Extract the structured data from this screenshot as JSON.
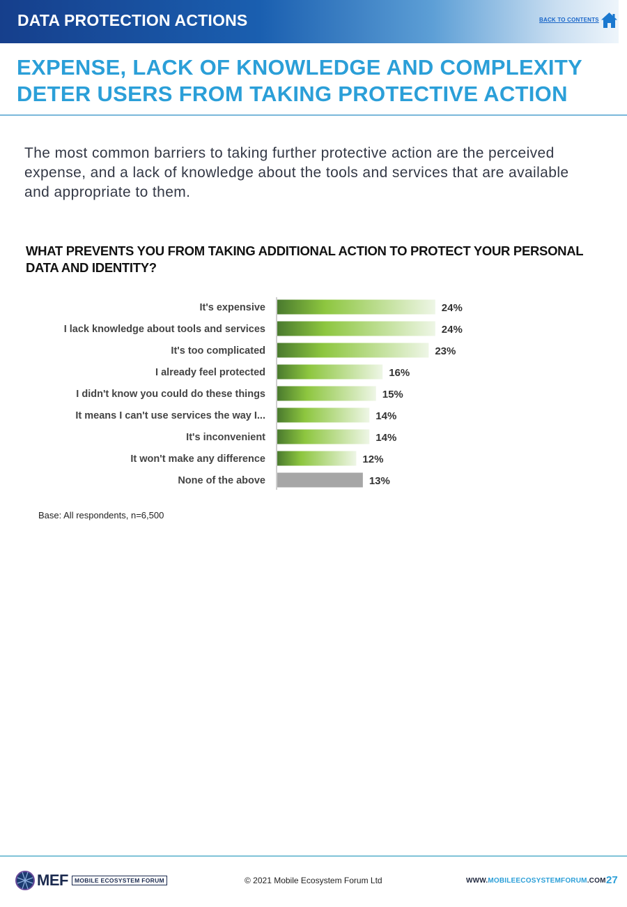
{
  "header": {
    "section_title": "DATA PROTECTION ACTIONS",
    "back_link": "BACK TO CONTENTS",
    "home_icon": "home-icon"
  },
  "page": {
    "heading": "EXPENSE, LACK OF KNOWLEDGE AND COMPLEXITY DETER USERS FROM TAKING PROTECTIVE ACTION",
    "intro": "The most common barriers to taking further protective action are the perceived expense, and a lack of knowledge about the tools and services that are available and appropriate to them."
  },
  "colors": {
    "brand_blue": "#2b9fd8",
    "bar_dark": "#4a7a2e",
    "bar_mid": "#8dc63f",
    "bar_light": "#eef6e6",
    "bar_neutral": "#a6a6a6"
  },
  "chart_data": {
    "type": "bar",
    "orientation": "horizontal",
    "title": "WHAT PREVENTS YOU FROM TAKING ADDITIONAL ACTION TO PROTECT YOUR PERSONAL DATA AND IDENTITY?",
    "categories": [
      "It's expensive",
      "I lack knowledge about tools and services",
      "It's too complicated",
      "I already feel protected",
      "I didn't know you could do these things",
      "It means I can't use services the way I...",
      "It's inconvenient",
      "It won't make any difference",
      "None of the above"
    ],
    "values": [
      24,
      24,
      23,
      16,
      15,
      14,
      14,
      12,
      13
    ],
    "value_labels": [
      "24%",
      "24%",
      "23%",
      "16%",
      "15%",
      "14%",
      "14%",
      "12%",
      "13%"
    ],
    "unit": "%",
    "xlim": [
      0,
      27
    ],
    "grid": false,
    "legend": "none",
    "note": "Base: All respondents, n=6,500"
  },
  "footer": {
    "logo_text": "MEF",
    "logo_subtext": "MOBILE ECOSYSTEM FORUM",
    "copyright": "© 2021 Mobile Ecosystem Forum Ltd",
    "url_prefix": "WWW.",
    "url_highlight": "MOBILEECOSYSTEMFORUM",
    "url_suffix": ".COM",
    "page_number": "27"
  }
}
